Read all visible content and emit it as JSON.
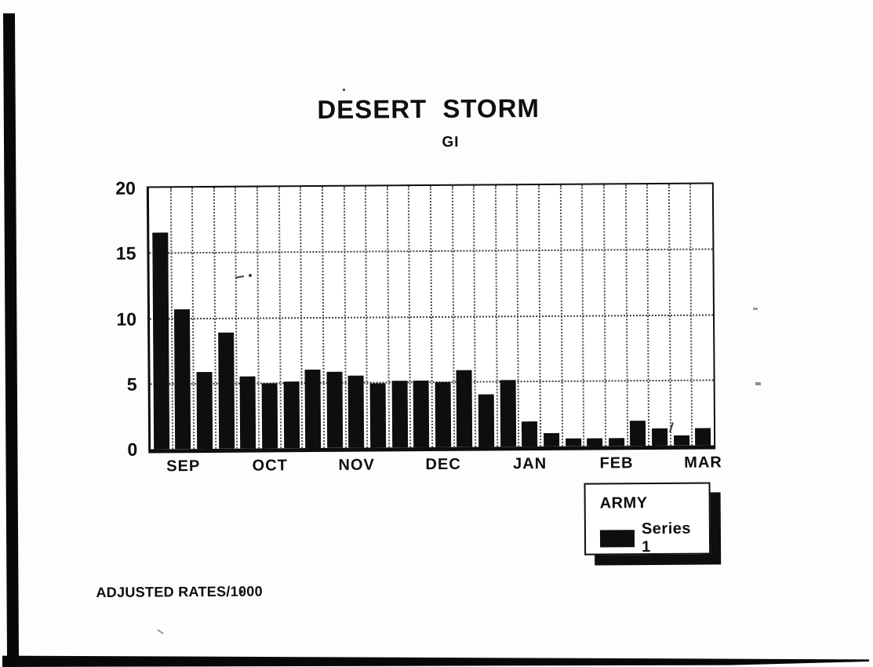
{
  "chart_data": {
    "type": "bar",
    "title": "DESERT STORM",
    "subtitle": "GI",
    "footnote": "ADJUSTED RATES/1000",
    "x_unit": "week",
    "x_range_note": "26 weekly bars, September through early March",
    "x_tick_labels": [
      "SEP",
      "OCT",
      "NOV",
      "DEC",
      "JAN",
      "FEB",
      "MAR"
    ],
    "x_tick_bar_index": [
      2,
      6,
      10,
      14,
      18,
      22,
      26
    ],
    "ylim": [
      0,
      20
    ],
    "yticks": [
      0,
      5,
      10,
      15,
      20
    ],
    "grid": "dotted vertical per bar slot; dotted horizontal at 5, 10, 15; solid frame",
    "legend": {
      "title": "ARMY",
      "entries": [
        "Series 1"
      ],
      "position": "below plot, right"
    },
    "series": [
      {
        "name": "Series 1",
        "color": "#0e0e0e",
        "values": [
          16.6,
          10.7,
          5.9,
          8.9,
          5.5,
          5.0,
          5.1,
          6.0,
          5.8,
          5.5,
          4.9,
          5.1,
          5.1,
          5.0,
          5.9,
          4.0,
          5.1,
          1.9,
          1.0,
          0.6,
          0.6,
          0.6,
          1.9,
          1.3,
          0.8,
          1.3
        ]
      }
    ]
  },
  "colors": {
    "ink": "#0e0e0e",
    "paper": "#fdfdfc",
    "grid": "#4b4b4b"
  }
}
